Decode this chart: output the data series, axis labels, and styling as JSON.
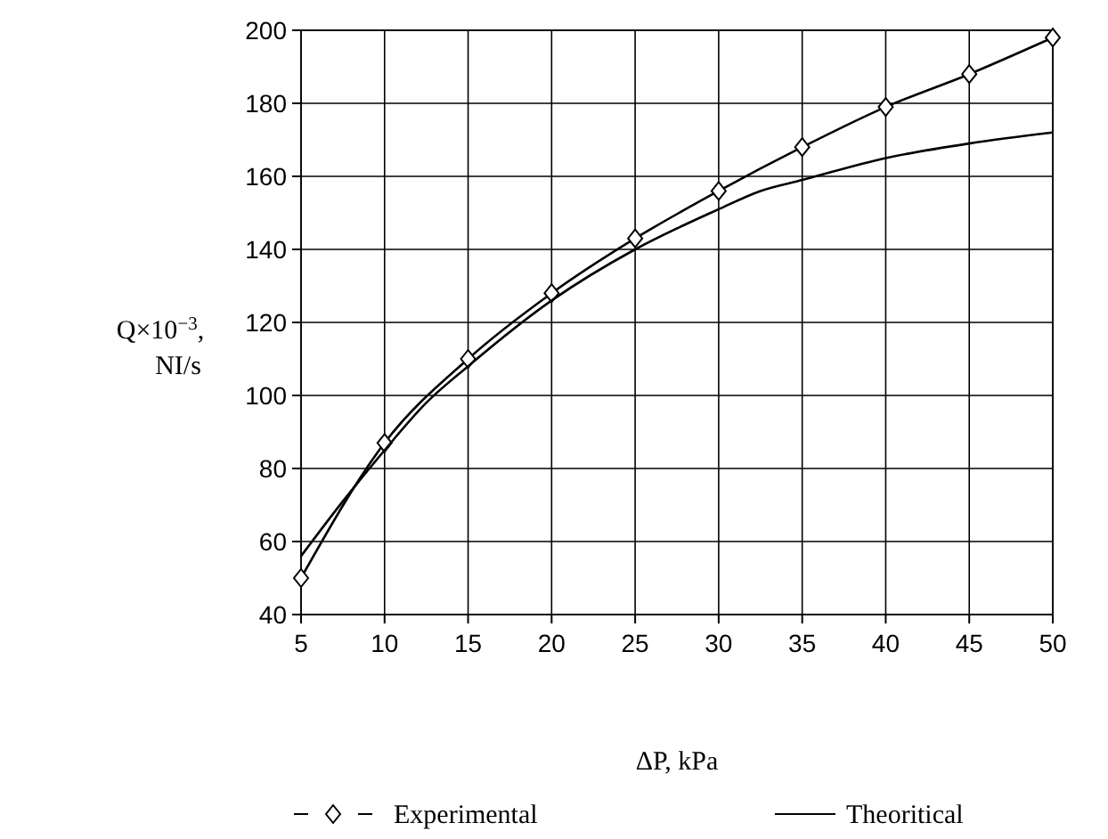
{
  "chart_data": {
    "type": "line",
    "xlabel": "ΔP,  kPa",
    "ylabel": "Q×10$^{−3}$, NI/s",
    "xlim": [
      5,
      50
    ],
    "ylim": [
      40,
      200
    ],
    "xticks": [
      5,
      10,
      15,
      20,
      25,
      30,
      35,
      40,
      45,
      50
    ],
    "yticks": [
      40,
      60,
      80,
      100,
      120,
      140,
      160,
      180,
      200
    ],
    "grid": true,
    "legend": "bottom",
    "series": [
      {
        "name": "Experimental",
        "color": "#000000",
        "marker": "diamond",
        "x": [
          5,
          10,
          15,
          20,
          25,
          30,
          35,
          40,
          45,
          50
        ],
        "values": [
          50,
          87,
          110,
          128,
          143,
          156,
          168,
          179,
          188,
          198
        ]
      },
      {
        "name": "Theoritical",
        "color": "#000000",
        "marker": "none",
        "x": [
          5,
          7.5,
          10,
          12.5,
          15,
          20,
          25,
          30,
          32.5,
          35,
          40,
          45,
          50
        ],
        "values": [
          56,
          71,
          85,
          98,
          108,
          126,
          140,
          151,
          156,
          159,
          165,
          169,
          172
        ]
      }
    ]
  }
}
